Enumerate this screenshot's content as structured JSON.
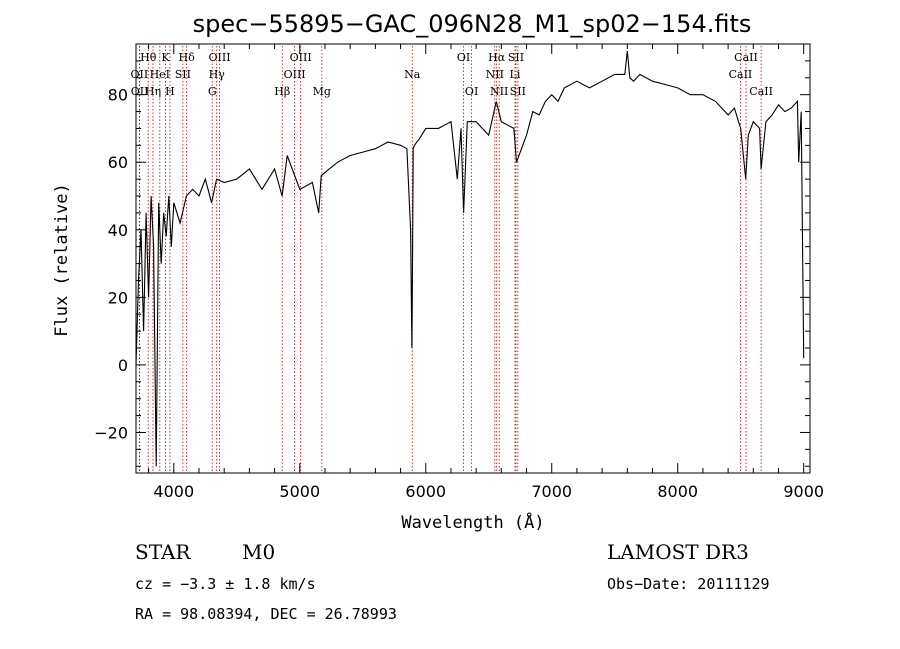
{
  "chart_data": {
    "type": "line",
    "title": "spec−55895−GAC_096N28_M1_sp02−154.fits",
    "xlabel": "Wavelength (Å)",
    "ylabel": "Flux (relative)",
    "xlim": [
      3700,
      9050
    ],
    "ylim": [
      -32,
      95
    ],
    "x_ticks": [
      4000,
      5000,
      6000,
      7000,
      8000,
      9000
    ],
    "x_tick_labels": [
      "4000",
      "5000",
      "6000",
      "7000",
      "8000",
      "9000"
    ],
    "y_ticks": [
      -20,
      0,
      20,
      40,
      60,
      80
    ],
    "y_tick_labels": [
      "−20",
      "0",
      "20",
      "40",
      "60",
      "80"
    ],
    "grid": false,
    "series": [
      {
        "name": "spectrum",
        "color": "#000000",
        "x": [
          3700,
          3720,
          3740,
          3760,
          3780,
          3800,
          3820,
          3840,
          3860,
          3880,
          3900,
          3920,
          3940,
          3960,
          3980,
          4000,
          4050,
          4100,
          4150,
          4200,
          4250,
          4300,
          4340,
          4400,
          4500,
          4600,
          4700,
          4800,
          4860,
          4900,
          5000,
          5100,
          5150,
          5170,
          5200,
          5300,
          5400,
          5500,
          5600,
          5700,
          5800,
          5850,
          5880,
          5890,
          5895,
          5900,
          5910,
          5950,
          6000,
          6100,
          6200,
          6250,
          6280,
          6300,
          6330,
          6400,
          6500,
          6560,
          6600,
          6700,
          6720,
          6800,
          6850,
          6900,
          6950,
          7000,
          7050,
          7100,
          7200,
          7300,
          7400,
          7500,
          7580,
          7600,
          7620,
          7650,
          7700,
          7800,
          7900,
          8000,
          8100,
          8200,
          8300,
          8400,
          8450,
          8500,
          8540,
          8560,
          8600,
          8650,
          8662,
          8700,
          8750,
          8800,
          8850,
          8900,
          8950,
          8960,
          8980,
          9000
        ],
        "y": [
          0,
          25,
          40,
          10,
          45,
          20,
          50,
          35,
          -30,
          48,
          30,
          45,
          38,
          50,
          35,
          48,
          42,
          50,
          52,
          50,
          55,
          48,
          55,
          54,
          55,
          58,
          52,
          58,
          50,
          62,
          52,
          54,
          45,
          56,
          57,
          60,
          62,
          63,
          64,
          66,
          65,
          64,
          40,
          5,
          30,
          64,
          65,
          67,
          70,
          70,
          72,
          55,
          70,
          45,
          72,
          72,
          68,
          78,
          72,
          70,
          60,
          68,
          75,
          74,
          78,
          80,
          78,
          82,
          84,
          82,
          84,
          86,
          86,
          93,
          85,
          84,
          86,
          84,
          83,
          82,
          80,
          80,
          78,
          74,
          76,
          70,
          55,
          68,
          72,
          70,
          58,
          72,
          74,
          77,
          75,
          76,
          78,
          60,
          75,
          2
        ]
      }
    ],
    "spectral_lines": [
      {
        "label": "Hθ",
        "x": 3797,
        "row": 0
      },
      {
        "label": "OII",
        "x": 3727,
        "row": 1
      },
      {
        "label": "OII",
        "x": 3729,
        "row": 2
      },
      {
        "label": "Hη",
        "x": 3835,
        "row": 2
      },
      {
        "label": "HeI",
        "x": 3889,
        "row": 1
      },
      {
        "label": "K",
        "x": 3934,
        "row": 0
      },
      {
        "label": "H",
        "x": 3969,
        "row": 2
      },
      {
        "label": "SII",
        "x": 4072,
        "row": 1
      },
      {
        "label": "Hδ",
        "x": 4102,
        "row": 0
      },
      {
        "label": "OIII",
        "x": 4363,
        "row": 0
      },
      {
        "label": "Hγ",
        "x": 4341,
        "row": 1
      },
      {
        "label": "G",
        "x": 4305,
        "row": 2
      },
      {
        "label": "Hβ",
        "x": 4861,
        "row": 2
      },
      {
        "label": "OIII",
        "x": 5007,
        "row": 0
      },
      {
        "label": "OIII",
        "x": 4959,
        "row": 1
      },
      {
        "label": "Mg",
        "x": 5175,
        "row": 2
      },
      {
        "label": "Na",
        "x": 5893,
        "row": 1
      },
      {
        "label": "OI",
        "x": 6300,
        "row": 0
      },
      {
        "label": "OI",
        "x": 6364,
        "row": 2
      },
      {
        "label": "Hα",
        "x": 6563,
        "row": 0
      },
      {
        "label": "NII",
        "x": 6548,
        "row": 1
      },
      {
        "label": "NII",
        "x": 6583,
        "row": 2
      },
      {
        "label": "SII",
        "x": 6716,
        "row": 0
      },
      {
        "label": "Li",
        "x": 6708,
        "row": 1
      },
      {
        "label": "SII",
        "x": 6731,
        "row": 2
      },
      {
        "label": "CaII",
        "x": 8542,
        "row": 0
      },
      {
        "label": "CaII",
        "x": 8498,
        "row": 1
      },
      {
        "label": "CaII",
        "x": 8662,
        "row": 2
      }
    ],
    "line_marker_color": "#c00000"
  },
  "info": {
    "class": "STAR",
    "subclass": "M0",
    "survey": "LAMOST DR3",
    "cz": "cz = −3.3 ± 1.8 km/s",
    "obs_date": "Obs−Date: 20111129",
    "coords": "RA =  98.08394, DEC =  26.78993"
  }
}
